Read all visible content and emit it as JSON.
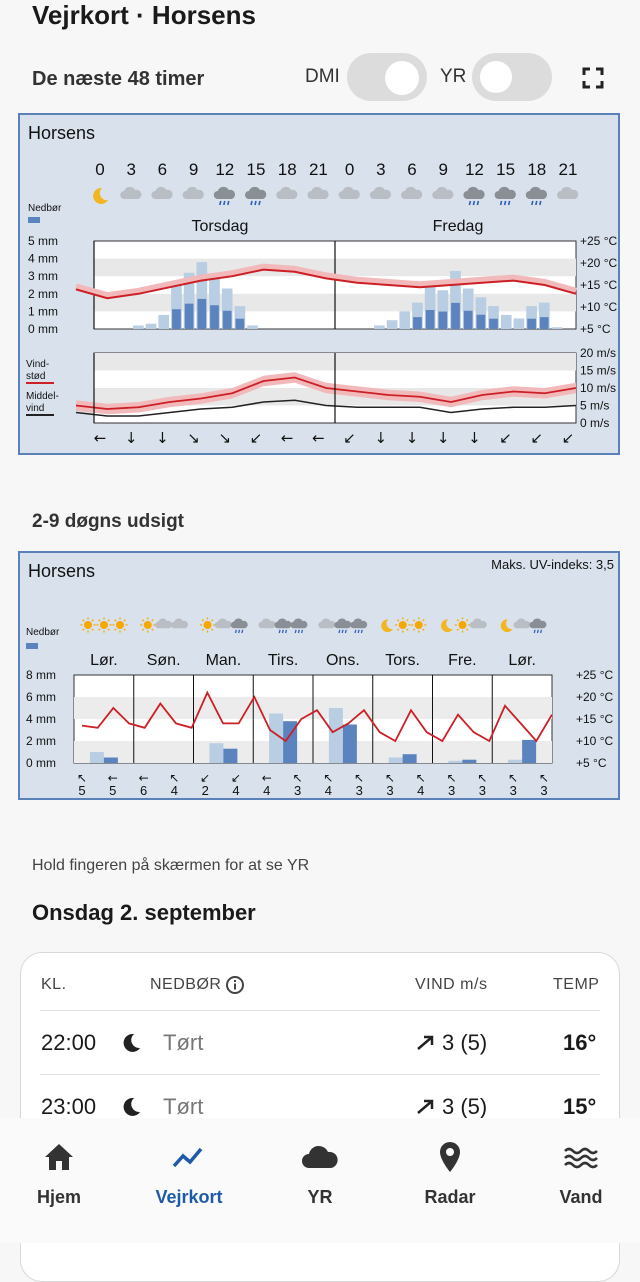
{
  "header": {
    "title": "Vejrkort · Horsens",
    "subtitle": "De næste 48 timer",
    "toggle_dmi": "DMI",
    "toggle_yr": "YR"
  },
  "colors": {
    "accent": "#1e5aa8",
    "panel_bg": "#d9e2ec",
    "panel_border": "#5a82b8",
    "temp_line": "#cc1f26",
    "rain_dark": "#5b83be",
    "rain_light": "#b9cde3"
  },
  "chart48": {
    "location": "Horsens",
    "hours": [
      "0",
      "3",
      "6",
      "9",
      "12",
      "15",
      "18",
      "21",
      "0",
      "3",
      "6",
      "9",
      "12",
      "15",
      "18",
      "21"
    ],
    "weather_icons": [
      "moon",
      "cloud",
      "cloud",
      "cloud",
      "rain-cloud",
      "rain-cloud",
      "cloud",
      "cloud",
      "cloud",
      "cloud",
      "cloud",
      "cloud",
      "rain-cloud",
      "rain-cloud",
      "rain-cloud",
      "cloud"
    ],
    "days": [
      "Torsdag",
      "Fredag"
    ],
    "precip_label": "Nedbør",
    "precip_ticks": [
      "5 mm",
      "4 mm",
      "3 mm",
      "2 mm",
      "1 mm",
      "0 mm"
    ],
    "temp_ticks": [
      "+25 °C",
      "+20 °C",
      "+15 °C",
      "+10 °C",
      "+5 °C"
    ],
    "wind_ticks": [
      "20 m/s",
      "15 m/s",
      "10 m/s",
      "5 m/s",
      "0 m/s"
    ],
    "gust_label": [
      "Vind-",
      "stød"
    ],
    "mean_wind_label": [
      "Middel-",
      "vind"
    ],
    "wind_arrows": [
      "←",
      "↓",
      "↓",
      "↘",
      "↘",
      "↙",
      "←",
      "←",
      "↙",
      "↓",
      "↓",
      "↓",
      "↓",
      "↙",
      "↙",
      "↙"
    ]
  },
  "chart_data": [
    {
      "type": "line",
      "title": "Horsens",
      "x": [
        0,
        3,
        6,
        9,
        12,
        15,
        18,
        21,
        24,
        27,
        30,
        33,
        36,
        39,
        42,
        45,
        48
      ],
      "series": [
        {
          "name": "",
          "values": [
            14,
            12,
            13,
            14.5,
            16,
            17,
            18.5,
            18,
            16.5,
            15.5,
            15,
            14.5,
            15,
            15.5,
            16,
            15,
            13
          ]
        },
        {
          "name": "Vind-stød",
          "values": [
            5,
            4,
            4.5,
            6,
            7,
            8.5,
            12,
            13,
            10,
            9,
            8,
            7.5,
            6,
            8,
            9,
            8.5,
            10
          ]
        },
        {
          "name": "Middel-vind",
          "values": [
            3,
            2,
            2,
            3,
            4,
            4.5,
            6,
            6.5,
            5,
            4.5,
            4.5,
            4.5,
            3,
            4,
            4.5,
            4.5,
            5
          ]
        }
      ],
      "precip_mm": [
        0,
        0,
        0,
        0.2,
        0.3,
        0.8,
        2.5,
        3.2,
        3.8,
        3.0,
        2.3,
        1.3,
        0.2,
        0,
        0,
        0,
        0,
        0,
        0,
        0,
        0,
        0,
        0.2,
        0.5,
        1.0,
        1.5,
        2.4,
        2.2,
        3.3,
        2.3,
        1.8,
        1.3,
        0.8,
        0.6,
        1.3,
        1.5,
        0.1,
        0
      ],
      "ylim_precip": [
        0,
        5
      ],
      "ylim_temp": [
        5,
        25
      ],
      "ylim_wind": [
        0,
        20
      ],
      "grid": true
    },
    {
      "type": "bar",
      "title": "Horsens",
      "categories": [
        "Lør.",
        "Søn.",
        "Man.",
        "Tirs.",
        "Ons.",
        "Tors.",
        "Fre.",
        "Lør."
      ],
      "series": [
        {
          "name": "",
          "values": [
            0.5,
            0,
            1.3,
            3.8,
            3.5,
            0.8,
            0.3,
            2.1
          ]
        },
        {
          "name": "",
          "values": [
            1.0,
            0,
            1.8,
            4.5,
            5.0,
            0.5,
            0.2,
            0.3
          ]
        }
      ],
      "temp": [
        13.5,
        13,
        17.5,
        14,
        13,
        18.5,
        14,
        13,
        21,
        14,
        14,
        20,
        12.5,
        10,
        15,
        17,
        12,
        14,
        17,
        12,
        10,
        17,
        12,
        10,
        16,
        12,
        10,
        18,
        14,
        10,
        16
      ],
      "ylim": [
        0,
        8
      ],
      "grid": true
    }
  ],
  "chart9": {
    "location": "Horsens",
    "uv": "Maks. UV-indeks: 3,5",
    "days": [
      "Lør.",
      "Søn.",
      "Man.",
      "Tirs.",
      "Ons.",
      "Tors.",
      "Fre.",
      "Lør."
    ],
    "precip_label": "Nedbør",
    "precip_ticks": [
      "8 mm",
      "6 mm",
      "4 mm",
      "2 mm",
      "0 mm"
    ],
    "temp_ticks": [
      "+25 °C",
      "+20 °C",
      "+15 °C",
      "+10 °C",
      "+5 °C"
    ],
    "wind_values": [
      "5",
      "5",
      "6",
      "4",
      "2",
      "4",
      "4",
      "3",
      "4",
      "3",
      "3",
      "4",
      "3",
      "3",
      "3",
      "3"
    ],
    "wind_arrows": [
      "↖",
      "←",
      "←",
      "↖",
      "↙",
      "↙",
      "←",
      "↖",
      "↖",
      "↖",
      "↖",
      "↖",
      "↖",
      "↖",
      "↖",
      "↖"
    ]
  },
  "sections": {
    "outlook_title": "2-9 døgns udsigt",
    "hint": "Hold fingeren på skærmen for at se YR",
    "day_title": "Onsdag 2. september"
  },
  "table": {
    "headers": {
      "time": "KL.",
      "precip": "NEDBØR",
      "wind": "VIND m/s",
      "temp": "TEMP"
    },
    "rows": [
      {
        "time": "22:00",
        "icon": "moon",
        "precip": "Tørt",
        "wind": "3 (5)",
        "temp": "16°"
      },
      {
        "time": "23:00",
        "icon": "moon",
        "precip": "Tørt",
        "wind": "3 (5)",
        "temp": "15°"
      }
    ]
  },
  "nav": {
    "items": [
      {
        "label": "Hjem",
        "icon": "home-icon"
      },
      {
        "label": "Vejrkort",
        "icon": "chart-icon"
      },
      {
        "label": "YR",
        "icon": "cloud-icon"
      },
      {
        "label": "Radar",
        "icon": "pin-icon"
      },
      {
        "label": "Vand",
        "icon": "waves-icon"
      }
    ]
  }
}
